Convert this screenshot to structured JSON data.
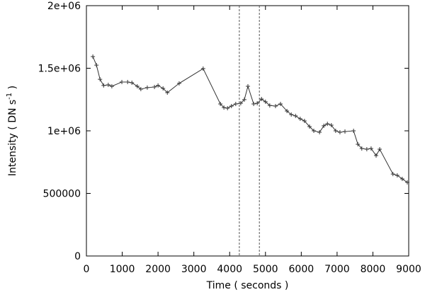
{
  "chart_data": {
    "type": "line",
    "xlabel": "Time ( seconds )",
    "ylabel": {
      "text": "Intensity ( DN s",
      "superscript": "-1",
      "suffix": " )"
    },
    "xlim": [
      0,
      9000
    ],
    "ylim": [
      0,
      2000000
    ],
    "xticks": [
      0,
      1000,
      2000,
      3000,
      4000,
      5000,
      6000,
      7000,
      8000,
      9000
    ],
    "yticks": [
      0,
      500000,
      {
        "value": 1000000,
        "label": "1e+06"
      },
      {
        "value": 1500000,
        "label": "1.5e+06"
      },
      {
        "value": 2000000,
        "label": "2e+06"
      }
    ],
    "vlines": [
      4270,
      4830
    ],
    "series": [
      {
        "color": "#333333",
        "x": [
          180,
          280,
          380,
          480,
          610,
          710,
          990,
          1150,
          1270,
          1420,
          1520,
          1700,
          1900,
          2000,
          2140,
          2260,
          2590,
          3260,
          3740,
          3840,
          3940,
          4050,
          4170,
          4310,
          4410,
          4510,
          4670,
          4770,
          4890,
          5000,
          5120,
          5280,
          5420,
          5600,
          5720,
          5840,
          5970,
          6090,
          6230,
          6350,
          6510,
          6630,
          6730,
          6840,
          6960,
          7080,
          7220,
          7460,
          7580,
          7690,
          7830,
          7950,
          8090,
          8190,
          8560,
          8680,
          8820,
          8960
        ],
        "values": [
          1593000,
          1525000,
          1412000,
          1362000,
          1367000,
          1356000,
          1390000,
          1390000,
          1384000,
          1356000,
          1333000,
          1345000,
          1350000,
          1362000,
          1339000,
          1305000,
          1379000,
          1497000,
          1215000,
          1186000,
          1181000,
          1198000,
          1215000,
          1220000,
          1249000,
          1356000,
          1215000,
          1220000,
          1254000,
          1232000,
          1203000,
          1198000,
          1215000,
          1158000,
          1130000,
          1119000,
          1096000,
          1079000,
          1034000,
          1000000,
          989000,
          1040000,
          1056000,
          1045000,
          1000000,
          989000,
          994000,
          1000000,
          893000,
          859000,
          853000,
          859000,
          802000,
          853000,
          655000,
          644000,
          616000,
          588000
        ]
      }
    ]
  }
}
